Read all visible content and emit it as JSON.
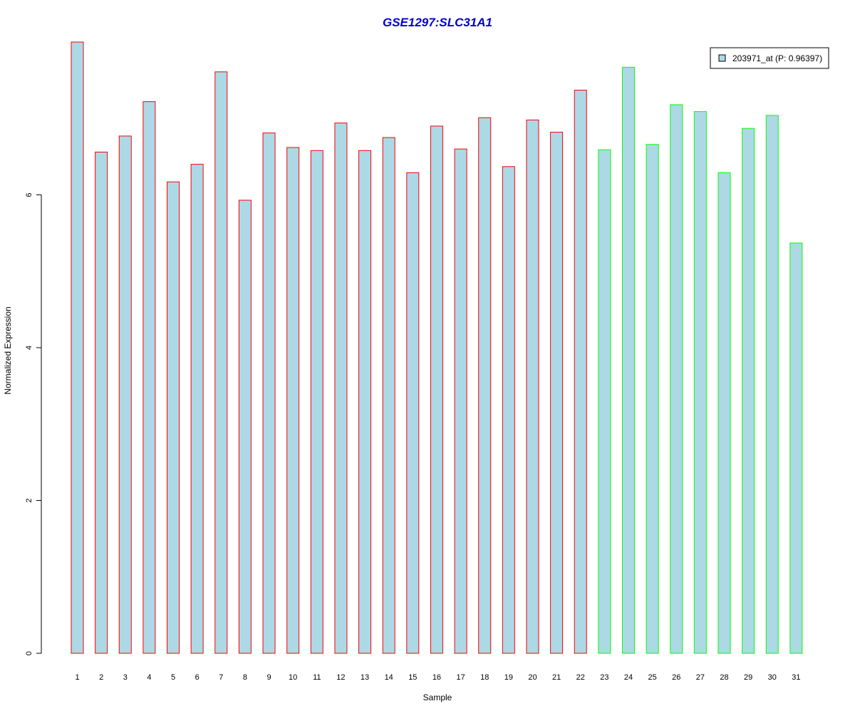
{
  "chart_data": {
    "type": "bar",
    "title": "GSE1297:SLC31A1",
    "xlabel": "Sample",
    "ylabel": "Normalized Expression",
    "categories": [
      "1",
      "2",
      "3",
      "4",
      "5",
      "6",
      "7",
      "8",
      "9",
      "10",
      "11",
      "12",
      "13",
      "14",
      "15",
      "16",
      "17",
      "18",
      "19",
      "20",
      "21",
      "22",
      "23",
      "24",
      "25",
      "26",
      "27",
      "28",
      "29",
      "30",
      "31"
    ],
    "series": [
      {
        "name": "203971_at (P: 0.96397)",
        "values": [
          8.0,
          6.56,
          6.77,
          7.22,
          6.17,
          6.4,
          7.61,
          5.93,
          6.81,
          6.62,
          6.58,
          6.94,
          6.58,
          6.75,
          6.29,
          6.9,
          6.6,
          7.01,
          6.37,
          6.98,
          6.82,
          7.37,
          6.59,
          7.67,
          6.66,
          7.18,
          7.09,
          6.29,
          6.87,
          7.04,
          5.37
        ],
        "fill": "#ADD8E6"
      }
    ],
    "group_colors": {
      "group_1_border": "#FF0000",
      "group_2_border": "#00FF00"
    },
    "group_1_count": 22,
    "yticks": [
      0,
      2,
      4,
      6
    ],
    "ylim": [
      0,
      8.0
    ],
    "grid": false,
    "legend_position": "top-right",
    "title_color": "#0000CC"
  }
}
